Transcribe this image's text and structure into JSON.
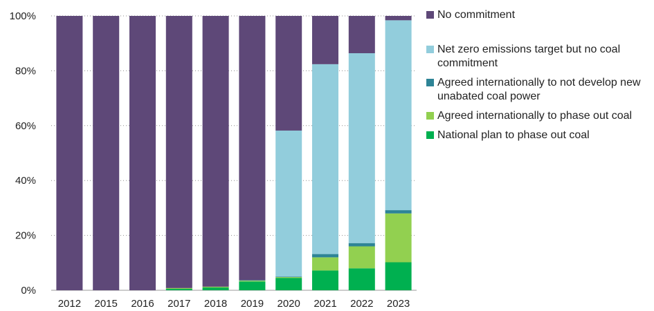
{
  "chart_data": {
    "type": "bar",
    "stacked": true,
    "title": "",
    "xlabel": "",
    "ylabel": "",
    "ylim": [
      0,
      100
    ],
    "y_ticks": [
      "0%",
      "20%",
      "40%",
      "60%",
      "80%",
      "100%"
    ],
    "y_tick_values": [
      0,
      20,
      40,
      60,
      80,
      100
    ],
    "grid": "horizontal dotted",
    "legend_position": "right",
    "categories": [
      "2012",
      "2015",
      "2016",
      "2017",
      "2018",
      "2019",
      "2020",
      "2021",
      "2022",
      "2023"
    ],
    "series": [
      {
        "name": "National plan to phase out coal",
        "color": "#00b050",
        "values": [
          0,
          0,
          0,
          0.5,
          1,
          3.2,
          4.5,
          7.2,
          8,
          10.2
        ]
      },
      {
        "name": "Agreed internationally to phase out coal",
        "color": "#92d050",
        "values": [
          0,
          0,
          0,
          0.3,
          0.3,
          0.3,
          0.3,
          4.8,
          8,
          17.8
        ]
      },
      {
        "name": "Agreed internationally to not develop new unabated coal power",
        "color": "#2e8496",
        "values": [
          0,
          0,
          0,
          0,
          0,
          0.2,
          0.2,
          1.2,
          1.2,
          1.2
        ]
      },
      {
        "name": "Net zero emissions target but no coal commitment",
        "color": "#92cddc",
        "values": [
          0,
          0,
          0,
          0,
          0,
          0,
          53.2,
          69.2,
          69.2,
          69.2
        ]
      },
      {
        "name": "No commitment",
        "color": "#5e4878",
        "values": [
          100,
          100,
          100,
          99.2,
          98.7,
          96.3,
          41.8,
          17.6,
          13.6,
          1.6
        ]
      }
    ]
  },
  "legend": [
    {
      "label": "No commitment",
      "color": "#5e4878"
    },
    {
      "label": "Net zero emissions target but no coal commitment",
      "color": "#92cddc"
    },
    {
      "label": "Agreed internationally to not develop new unabated coal power",
      "color": "#2e8496"
    },
    {
      "label": "Agreed internationally to phase out coal",
      "color": "#92d050"
    },
    {
      "label": "National plan to phase out coal",
      "color": "#00b050"
    }
  ]
}
